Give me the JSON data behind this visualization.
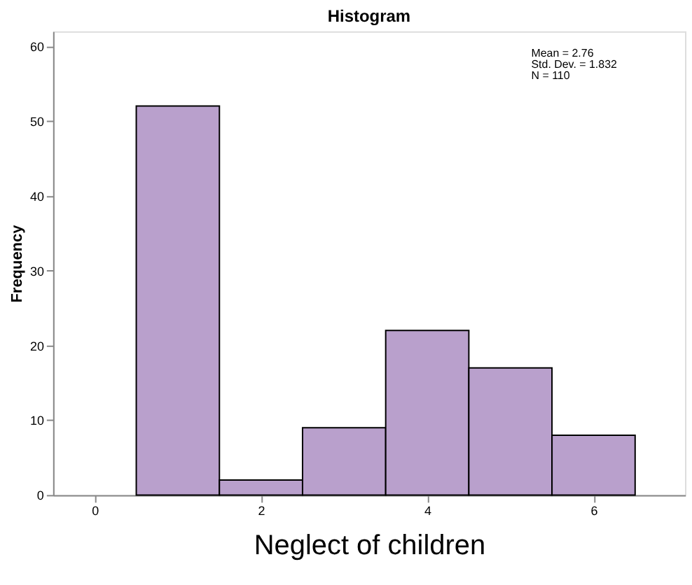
{
  "chart_data": {
    "type": "histogram",
    "title": "Histogram",
    "xlabel": "Neglect of children",
    "ylabel": "Frequency",
    "bins": [
      0.5,
      1.5,
      2.5,
      3.5,
      4.5,
      5.5,
      6.5
    ],
    "values": [
      52,
      2,
      9,
      22,
      17,
      8
    ],
    "color": "#b9a0cc",
    "xlim": [
      -0.5,
      7.1
    ],
    "xticks": [
      0,
      2,
      4,
      6
    ],
    "ylim": [
      0,
      62
    ],
    "yticks": [
      0,
      10,
      20,
      30,
      40,
      50,
      60
    ],
    "grid": false,
    "annotations": [
      "Mean = 2.76",
      "Std. Dev. = 1.832",
      "N = 110"
    ]
  }
}
